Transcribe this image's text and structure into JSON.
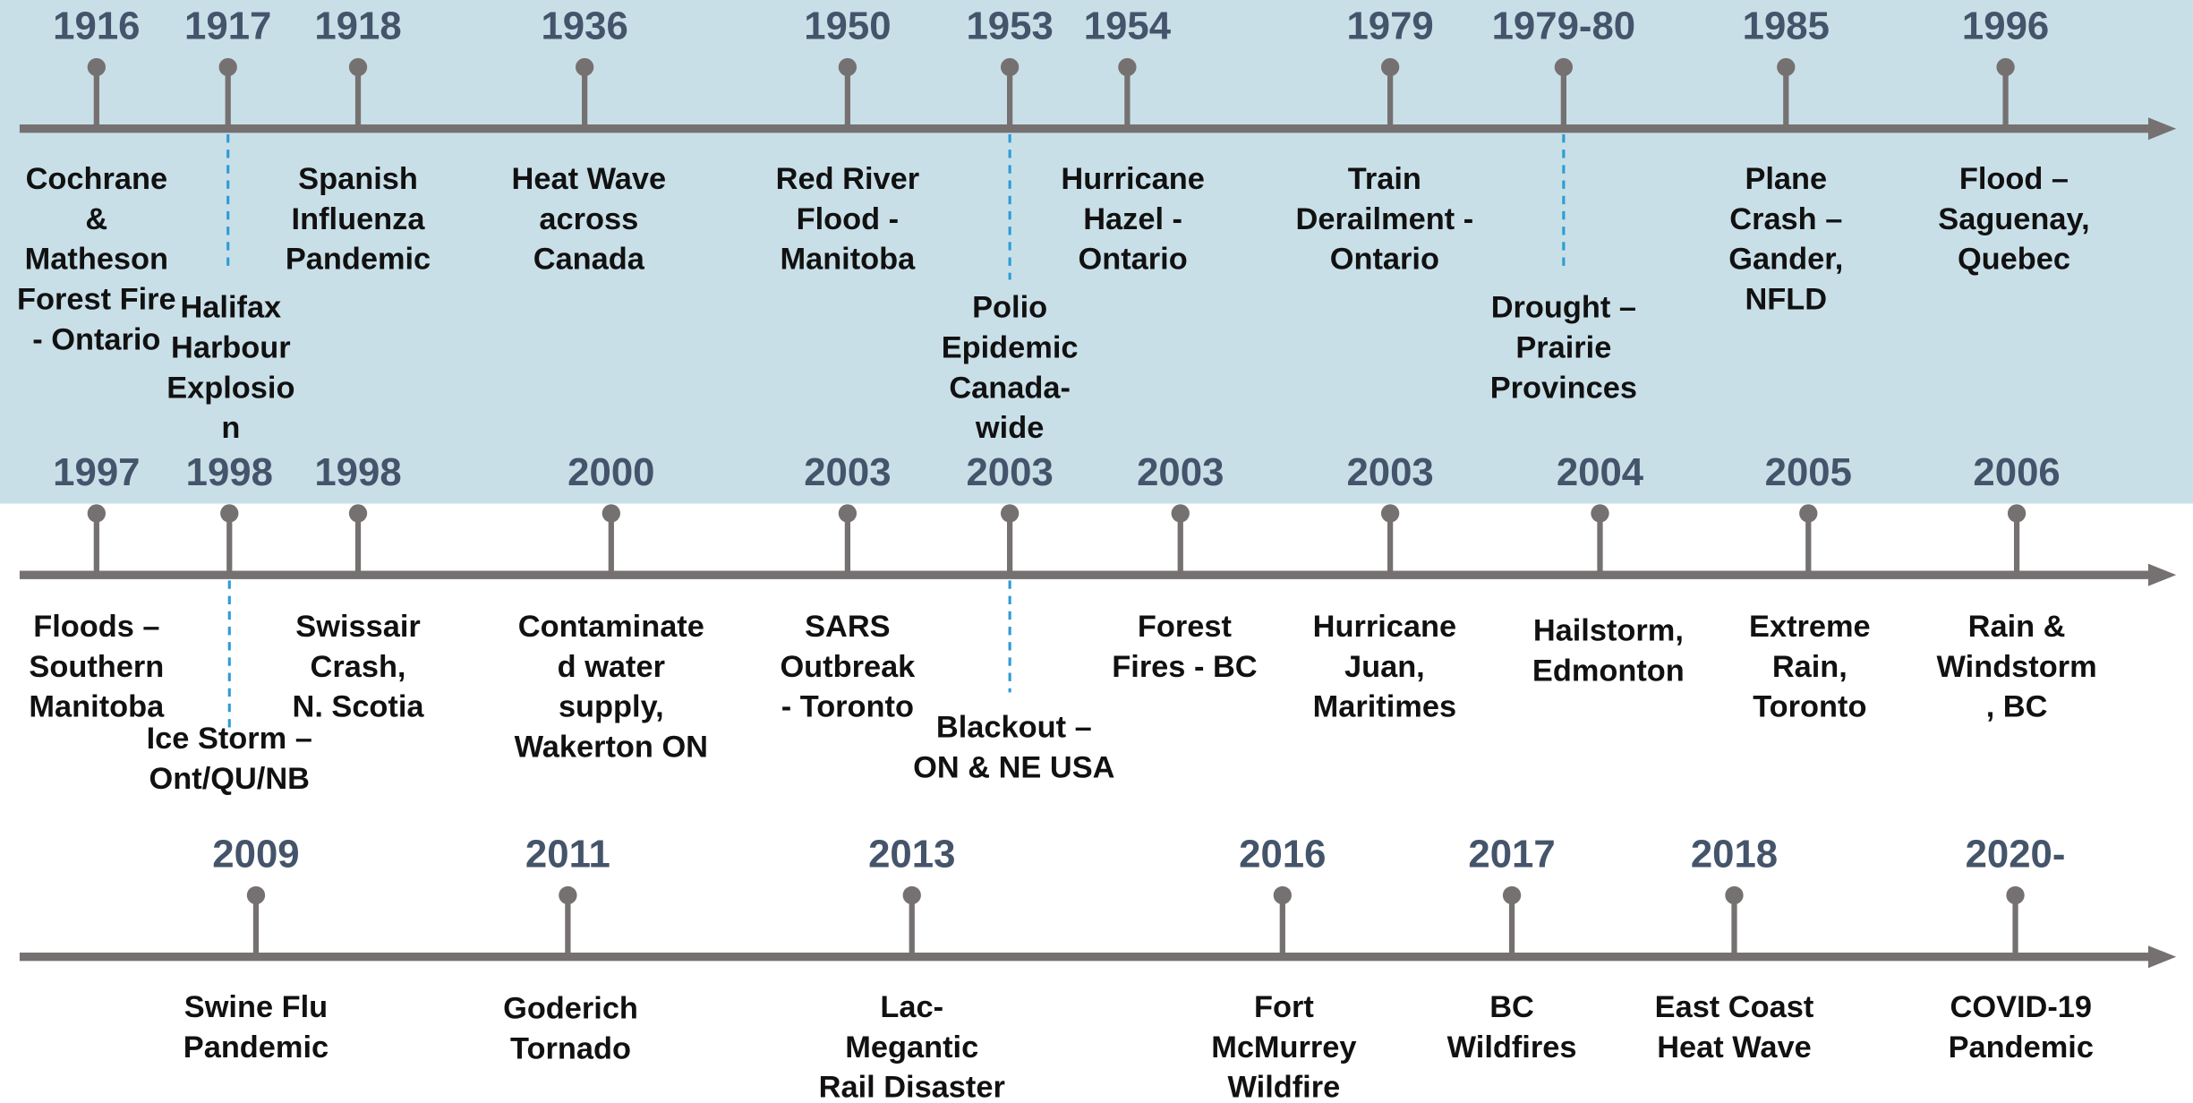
{
  "rows": [
    {
      "events": [
        {
          "year": "1916",
          "lines": [
            "Cochrane",
            "&",
            "Matheson",
            "Forest Fire",
            "- Ontario"
          ]
        },
        {
          "year": "1917",
          "lines": [
            "Halifax",
            "Harbour",
            "Explosio",
            "n"
          ]
        },
        {
          "year": "1918",
          "lines": [
            "Spanish",
            "Influenza",
            "Pandemic"
          ]
        },
        {
          "year": "1936",
          "lines": [
            "Heat Wave",
            "across",
            "Canada"
          ]
        },
        {
          "year": "1950",
          "lines": [
            "Red River",
            "Flood -",
            "Manitoba"
          ]
        },
        {
          "year": "1953",
          "lines": [
            "Polio",
            "Epidemic",
            "Canada-",
            "wide"
          ]
        },
        {
          "year": "1954",
          "lines": [
            "Hurricane",
            "Hazel -",
            "Ontario"
          ]
        },
        {
          "year": "1979",
          "lines": [
            "Train",
            "Derailment -",
            "Ontario"
          ]
        },
        {
          "year": "1979-80",
          "lines": [
            "Drought –",
            "Prairie",
            "Provinces"
          ]
        },
        {
          "year": "1985",
          "lines": [
            "Plane",
            "Crash –",
            "Gander,",
            "NFLD"
          ]
        },
        {
          "year": "1996",
          "lines": [
            "Flood –",
            "Saguenay,",
            "Quebec"
          ]
        }
      ]
    },
    {
      "events": [
        {
          "year": "1997",
          "lines": [
            "Floods –",
            "Southern",
            "Manitoba"
          ]
        },
        {
          "year": "1998",
          "lines": [
            "Ice Storm –",
            "Ont/QU/NB"
          ]
        },
        {
          "year": "1998",
          "lines": [
            "Swissair",
            "Crash,",
            "N. Scotia"
          ]
        },
        {
          "year": "2000",
          "lines": [
            "Contaminate",
            "d water",
            "supply,",
            "Wakerton ON"
          ]
        },
        {
          "year": "2003",
          "lines": [
            "SARS",
            "Outbreak",
            "- Toronto"
          ]
        },
        {
          "year": "2003",
          "lines": [
            "Blackout –",
            "ON & NE USA"
          ]
        },
        {
          "year": "2003",
          "lines": [
            "Forest",
            "Fires - BC"
          ]
        },
        {
          "year": "2003",
          "lines": [
            "Hurricane",
            "Juan,",
            "Maritimes"
          ]
        },
        {
          "year": "2004",
          "lines": [
            "Hailstorm,",
            "Edmonton"
          ]
        },
        {
          "year": "2005",
          "lines": [
            "Extreme",
            "Rain,",
            "Toronto"
          ]
        },
        {
          "year": "2006",
          "lines": [
            "Rain &",
            "Windstorm",
            ", BC"
          ]
        }
      ]
    },
    {
      "events": [
        {
          "year": "2009",
          "lines": [
            "Swine Flu",
            "Pandemic"
          ]
        },
        {
          "year": "2011",
          "lines": [
            "Goderich",
            "Tornado"
          ]
        },
        {
          "year": "2013",
          "lines": [
            "Lac-",
            "Megantic",
            "Rail Disaster"
          ]
        },
        {
          "year": "2016",
          "lines": [
            "Fort",
            "McMurrey",
            "Wildfire"
          ]
        },
        {
          "year": "2017",
          "lines": [
            "BC",
            "Wildfires"
          ]
        },
        {
          "year": "2018",
          "lines": [
            "East Coast",
            "Heat Wave"
          ]
        },
        {
          "year": "2020-",
          "lines": [
            "COVID-19",
            "Pandemic"
          ]
        }
      ]
    }
  ]
}
